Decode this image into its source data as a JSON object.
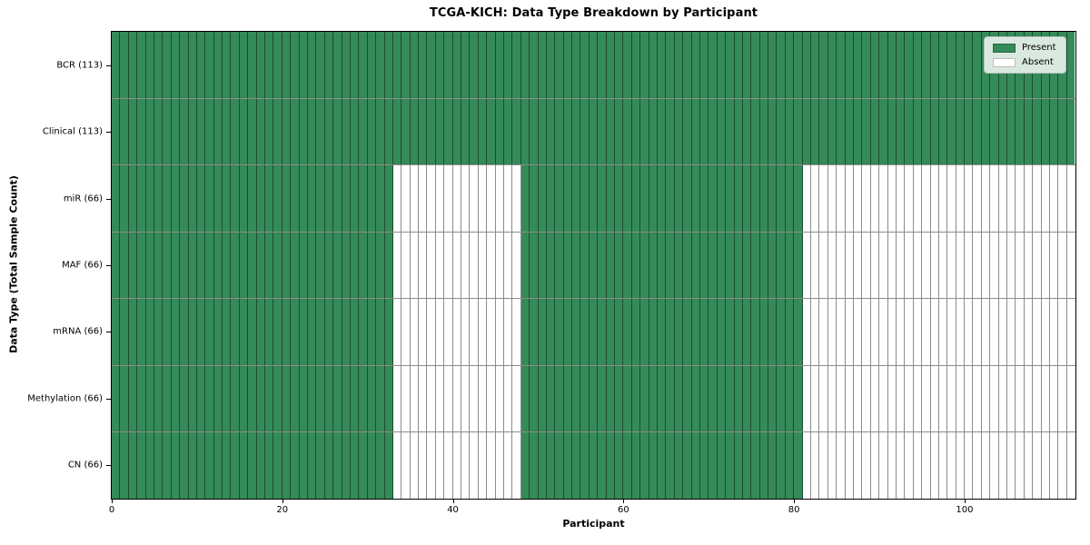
{
  "chart_data": {
    "type": "heatmap",
    "title": "TCGA-KICH: Data Type Breakdown by Participant",
    "xlabel": "Participant",
    "ylabel": "Data Type (Total Sample Count)",
    "xlim": [
      0,
      113
    ],
    "n_participants": 113,
    "x_ticks": [
      0,
      20,
      40,
      60,
      80,
      100
    ],
    "grid": false,
    "colors": {
      "present": "#348a58",
      "absent": "#ffffff",
      "cell_edge": "rgba(0,0,0,0.45)",
      "legend_background": "#d9e9df"
    },
    "rows": [
      {
        "data_type": "BCR",
        "label": "BCR (113)",
        "sample_count": 113,
        "present_ranges": [
          [
            0,
            113
          ]
        ]
      },
      {
        "data_type": "Clinical",
        "label": "Clinical (113)",
        "sample_count": 113,
        "present_ranges": [
          [
            0,
            113
          ]
        ]
      },
      {
        "data_type": "miR",
        "label": "miR (66)",
        "sample_count": 66,
        "present_ranges": [
          [
            0,
            33
          ],
          [
            48,
            81
          ]
        ]
      },
      {
        "data_type": "MAF",
        "label": "MAF (66)",
        "sample_count": 66,
        "present_ranges": [
          [
            0,
            33
          ],
          [
            48,
            81
          ]
        ]
      },
      {
        "data_type": "mRNA",
        "label": "mRNA (66)",
        "sample_count": 66,
        "present_ranges": [
          [
            0,
            33
          ],
          [
            48,
            81
          ]
        ]
      },
      {
        "data_type": "Methylation",
        "label": "Methylation (66)",
        "sample_count": 66,
        "present_ranges": [
          [
            0,
            33
          ],
          [
            48,
            81
          ]
        ]
      },
      {
        "data_type": "CN",
        "label": "CN (66)",
        "sample_count": 66,
        "present_ranges": [
          [
            0,
            33
          ],
          [
            48,
            81
          ]
        ]
      }
    ],
    "legend": {
      "position": "upper right",
      "entries": [
        {
          "label": "Present",
          "color": "#348a58"
        },
        {
          "label": "Absent",
          "color": "#ffffff"
        }
      ]
    }
  }
}
